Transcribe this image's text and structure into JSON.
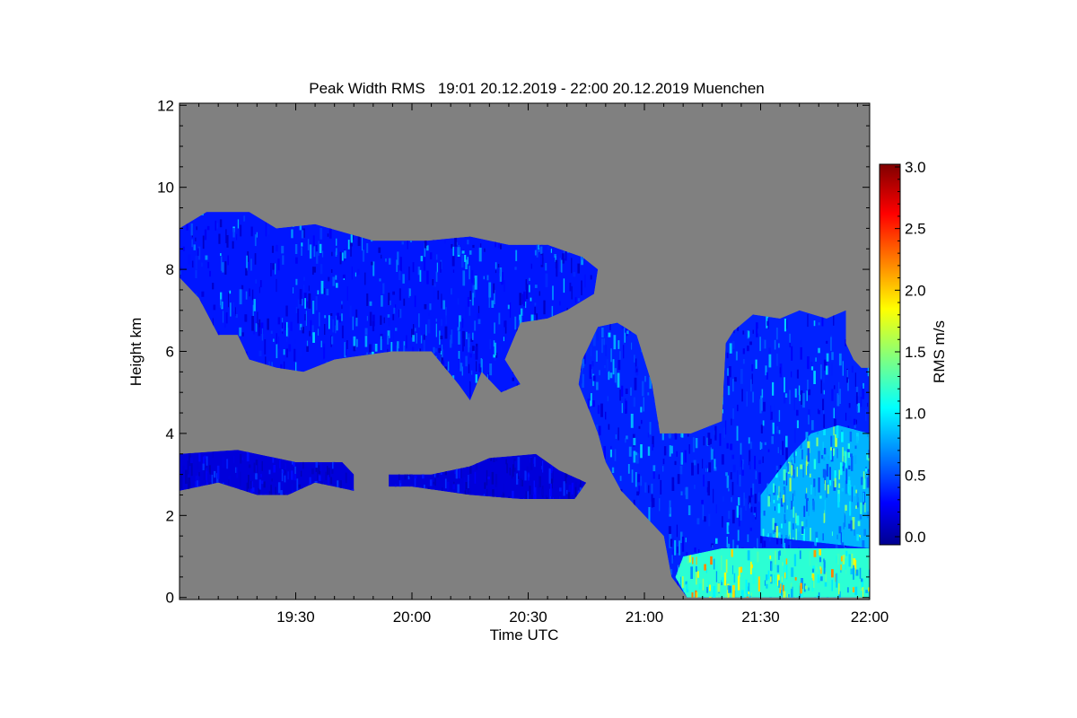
{
  "chart_data": {
    "type": "heatmap",
    "title": "Peak Width RMS   19:01 20.12.2019 - 22:00 20.12.2019 Muenchen",
    "xlabel": "Time UTC",
    "ylabel": "Height km",
    "colorbar_label": "RMS m/s",
    "xlim_minutes_after_1900": [
      0,
      178
    ],
    "ylim": [
      -0.05,
      12.05
    ],
    "x_ticks": [
      {
        "label": "19:30",
        "value": 30
      },
      {
        "label": "20:00",
        "value": 60
      },
      {
        "label": "20:30",
        "value": 90
      },
      {
        "label": "21:00",
        "value": 120
      },
      {
        "label": "21:30",
        "value": 150
      },
      {
        "label": "22:00",
        "value": 180
      }
    ],
    "y_ticks": [
      {
        "label": "0",
        "value": 0
      },
      {
        "label": "2",
        "value": 2
      },
      {
        "label": "4",
        "value": 4
      },
      {
        "label": "6",
        "value": 6
      },
      {
        "label": "8",
        "value": 8
      },
      {
        "label": "10",
        "value": 10
      },
      {
        "label": "12",
        "value": 12
      }
    ],
    "colorbar_ticks": [
      {
        "label": "0.0",
        "value": 0.0
      },
      {
        "label": "0.5",
        "value": 0.5
      },
      {
        "label": "1.0",
        "value": 1.0
      },
      {
        "label": "1.5",
        "value": 1.5
      },
      {
        "label": "2.0",
        "value": 2.0
      },
      {
        "label": "2.5",
        "value": 2.5
      },
      {
        "label": "3.0",
        "value": 3.0
      }
    ],
    "colorbar_range": [
      0.0,
      3.0
    ],
    "no_data_color": "#808080",
    "colormap": "jet",
    "regions": [
      {
        "name": "upper-cloud",
        "rms_range": [
          0.2,
          1.0
        ],
        "points": [
          [
            0,
            9.0
          ],
          [
            7,
            9.4
          ],
          [
            18,
            9.4
          ],
          [
            25,
            9.0
          ],
          [
            35,
            9.1
          ],
          [
            50,
            8.7
          ],
          [
            64,
            8.7
          ],
          [
            75,
            8.8
          ],
          [
            85,
            8.6
          ],
          [
            95,
            8.6
          ],
          [
            104,
            8.3
          ],
          [
            108,
            8.0
          ],
          [
            107,
            7.4
          ],
          [
            100,
            7.0
          ],
          [
            95,
            6.8
          ],
          [
            88,
            6.7
          ],
          [
            84,
            5.8
          ],
          [
            88,
            5.2
          ],
          [
            83,
            5.0
          ],
          [
            78,
            5.5
          ],
          [
            75,
            4.8
          ],
          [
            72,
            5.2
          ],
          [
            65,
            6.0
          ],
          [
            55,
            6.0
          ],
          [
            40,
            5.8
          ],
          [
            32,
            5.5
          ],
          [
            25,
            5.6
          ],
          [
            18,
            5.8
          ],
          [
            15,
            6.4
          ],
          [
            10,
            6.4
          ],
          [
            5,
            7.3
          ],
          [
            0,
            7.8
          ]
        ]
      },
      {
        "name": "low-layer-west",
        "rms_range": [
          0.15,
          0.55
        ],
        "points": [
          [
            0,
            3.5
          ],
          [
            15,
            3.6
          ],
          [
            25,
            3.4
          ],
          [
            30,
            3.3
          ],
          [
            42,
            3.3
          ],
          [
            45,
            3.0
          ],
          [
            45,
            2.6
          ],
          [
            35,
            2.8
          ],
          [
            28,
            2.5
          ],
          [
            20,
            2.5
          ],
          [
            10,
            2.8
          ],
          [
            0,
            2.6
          ]
        ]
      },
      {
        "name": "low-layer-east",
        "rms_range": [
          0.15,
          0.55
        ],
        "points": [
          [
            54,
            3.0
          ],
          [
            65,
            3.0
          ],
          [
            75,
            3.2
          ],
          [
            80,
            3.4
          ],
          [
            92,
            3.5
          ],
          [
            98,
            3.1
          ],
          [
            105,
            2.8
          ],
          [
            102,
            2.4
          ],
          [
            88,
            2.4
          ],
          [
            75,
            2.5
          ],
          [
            60,
            2.7
          ],
          [
            54,
            2.7
          ]
        ]
      },
      {
        "name": "eastern-cloud-mass",
        "rms_range": [
          0.25,
          1.0
        ],
        "points": [
          [
            103,
            5.2
          ],
          [
            104,
            5.8
          ],
          [
            108,
            6.6
          ],
          [
            113,
            6.7
          ],
          [
            118,
            6.4
          ],
          [
            122,
            5.2
          ],
          [
            124,
            4.0
          ],
          [
            132,
            4.0
          ],
          [
            140,
            4.3
          ],
          [
            141,
            6.2
          ],
          [
            143,
            6.5
          ],
          [
            148,
            6.9
          ],
          [
            155,
            6.8
          ],
          [
            160,
            7.0
          ],
          [
            167,
            6.8
          ],
          [
            172,
            7.0
          ],
          [
            172,
            6.2
          ],
          [
            174,
            5.8
          ],
          [
            176,
            5.6
          ],
          [
            178,
            5.6
          ],
          [
            178,
            0
          ],
          [
            131,
            0
          ],
          [
            127,
            0.5
          ],
          [
            125,
            1.5
          ],
          [
            120,
            2.0
          ],
          [
            114,
            2.6
          ],
          [
            110,
            3.3
          ],
          [
            108,
            4.0
          ],
          [
            106,
            4.5
          ]
        ]
      },
      {
        "name": "turbulent-lower-layer",
        "rms_range": [
          0.6,
          1.6
        ],
        "points": [
          [
            150,
            2.5
          ],
          [
            158,
            3.5
          ],
          [
            163,
            4.0
          ],
          [
            170,
            4.2
          ],
          [
            178,
            4.0
          ],
          [
            178,
            1.2
          ],
          [
            150,
            1.5
          ]
        ]
      },
      {
        "name": "surface-layer",
        "rms_range": [
          0.8,
          2.3
        ],
        "points": [
          [
            140,
            1.2
          ],
          [
            178,
            1.2
          ],
          [
            178,
            0
          ],
          [
            131,
            0
          ],
          [
            128,
            0.5
          ],
          [
            130,
            1.0
          ]
        ]
      }
    ]
  }
}
